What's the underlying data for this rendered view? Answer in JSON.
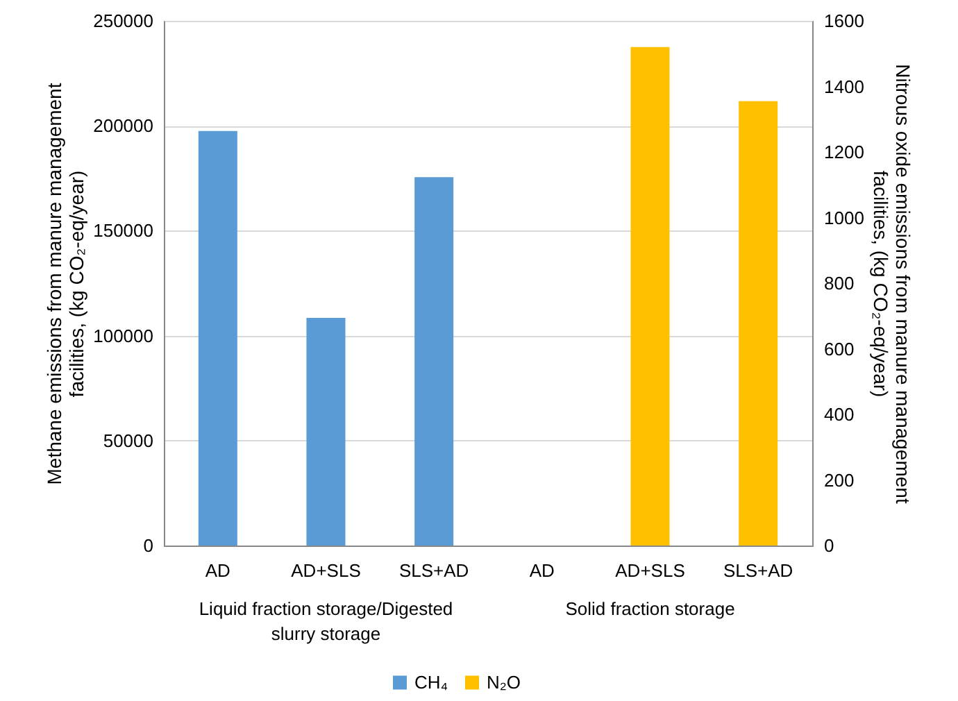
{
  "chart_data": {
    "type": "bar",
    "categories": [
      "AD",
      "AD+SLS",
      "SLS+AD",
      "AD",
      "AD+SLS",
      "SLS+AD"
    ],
    "series": [
      {
        "name": "CH₄",
        "color": "#5b9bd5",
        "values": [
          197500,
          108500,
          175500,
          null,
          null,
          null
        ]
      },
      {
        "name": "N₂O",
        "color": "#ffc000",
        "axis": "y2",
        "values": [
          null,
          null,
          null,
          null,
          1520,
          1355
        ]
      }
    ],
    "ylabel": "Methane emissions from manure management facilities, (kg CO₂-eq/year)",
    "y2label": "Nitrous oxide emissions from manure management facilities, (kg CO₂-eq/year)",
    "ylim": [
      0,
      250000
    ],
    "yticks": [
      0,
      50000,
      100000,
      150000,
      200000,
      250000
    ],
    "y2lim": [
      0,
      1600
    ],
    "y2ticks": [
      0,
      200,
      400,
      600,
      800,
      1000,
      1200,
      1400,
      1600
    ],
    "annotations": [
      "Liquid fraction storage/Digested slurry storage",
      "Solid fraction storage"
    ],
    "grid": "y",
    "legend": "bottom"
  }
}
